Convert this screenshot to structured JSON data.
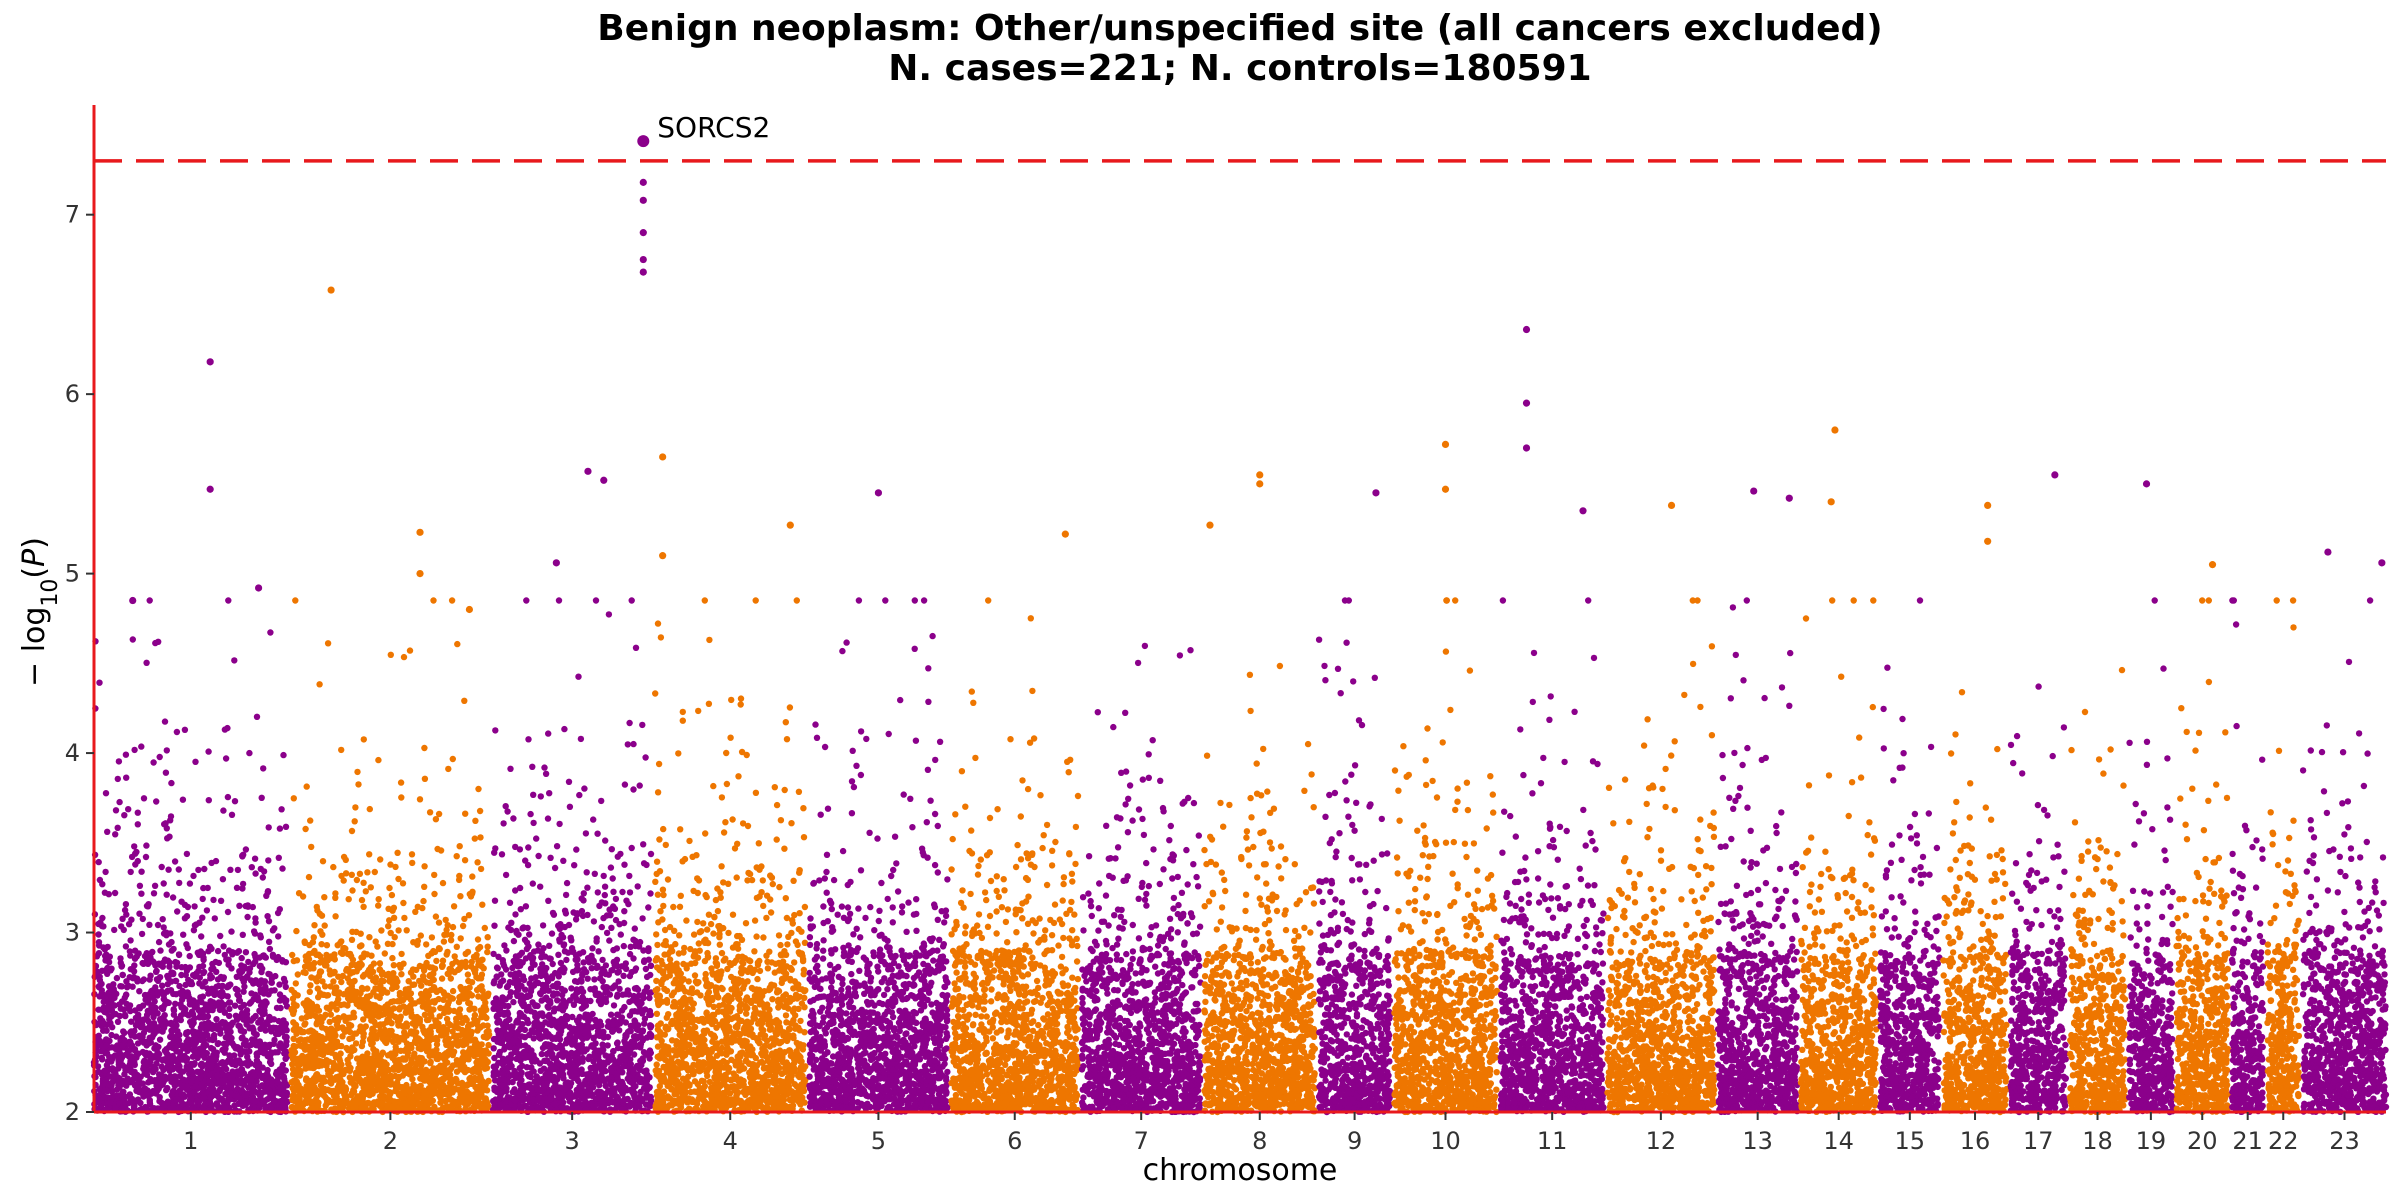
{
  "chart_data": {
    "type": "scatter",
    "title_lines": [
      "Benign neoplasm: Other/unspecified site (all cancers excluded)",
      "N. cases=221; N. controls=180591"
    ],
    "xlabel": "chromosome",
    "ylabel": "−log10(P)",
    "ylabel_parts": {
      "prefix": "− log",
      "sub": "10",
      "open": "(",
      "var": "P",
      "close": ")"
    },
    "ylim": [
      2,
      7.6
    ],
    "yticks": [
      2,
      3,
      4,
      5,
      6,
      7
    ],
    "grid": false,
    "significance_line": {
      "y": 7.3,
      "color": "#e8191c",
      "style": "dashed"
    },
    "colors": {
      "odd": "#8b008b",
      "even": "#ee7600",
      "axis": "#e8191c"
    },
    "chromosomes": [
      "1",
      "2",
      "3",
      "4",
      "5",
      "6",
      "7",
      "8",
      "9",
      "10",
      "11",
      "12",
      "13",
      "14",
      "15",
      "16",
      "17",
      "18",
      "19",
      "20",
      "21",
      "22",
      "23"
    ],
    "chromosome_spans": [
      {
        "start": 0.0,
        "end": 0.98
      },
      {
        "start": 1.0,
        "end": 2.0
      },
      {
        "start": 2.02,
        "end": 2.82
      },
      {
        "start": 2.84,
        "end": 3.6
      },
      {
        "start": 3.62,
        "end": 4.32
      },
      {
        "start": 4.34,
        "end": 4.98
      },
      {
        "start": 5.0,
        "end": 5.6
      },
      {
        "start": 5.62,
        "end": 6.18
      },
      {
        "start": 6.2,
        "end": 6.56
      },
      {
        "start": 6.58,
        "end": 7.1
      },
      {
        "start": 7.12,
        "end": 7.64
      },
      {
        "start": 7.66,
        "end": 8.2
      },
      {
        "start": 8.22,
        "end": 8.62
      },
      {
        "start": 8.64,
        "end": 9.02
      },
      {
        "start": 9.04,
        "end": 9.34
      },
      {
        "start": 9.36,
        "end": 9.68
      },
      {
        "start": 9.7,
        "end": 9.98
      },
      {
        "start": 10.0,
        "end": 10.28
      },
      {
        "start": 10.3,
        "end": 10.52
      },
      {
        "start": 10.54,
        "end": 10.8
      },
      {
        "start": 10.82,
        "end": 10.98
      },
      {
        "start": 11.0,
        "end": 11.16
      },
      {
        "start": 11.18,
        "end": 11.6
      }
    ],
    "top_points": [
      {
        "chr": 1,
        "pos": 0.2,
        "y": 4.85
      },
      {
        "chr": 1,
        "pos": 0.6,
        "y": 6.18
      },
      {
        "chr": 1,
        "pos": 0.6,
        "y": 5.47
      },
      {
        "chr": 1,
        "pos": 0.85,
        "y": 4.92
      },
      {
        "chr": 2,
        "pos": 0.2,
        "y": 6.58
      },
      {
        "chr": 2,
        "pos": 0.65,
        "y": 5.23
      },
      {
        "chr": 2,
        "pos": 0.65,
        "y": 5.0
      },
      {
        "chr": 2,
        "pos": 0.9,
        "y": 4.8
      },
      {
        "chr": 3,
        "pos": 0.4,
        "y": 5.06
      },
      {
        "chr": 3,
        "pos": 0.6,
        "y": 5.57
      },
      {
        "chr": 3,
        "pos": 0.7,
        "y": 5.52
      },
      {
        "chr": 3,
        "pos": 0.95,
        "y": 7.18
      },
      {
        "chr": 3,
        "pos": 0.95,
        "y": 7.08
      },
      {
        "chr": 3,
        "pos": 0.95,
        "y": 6.9
      },
      {
        "chr": 3,
        "pos": 0.95,
        "y": 6.75
      },
      {
        "chr": 3,
        "pos": 0.95,
        "y": 6.68
      },
      {
        "chr": 4,
        "pos": 0.05,
        "y": 5.65
      },
      {
        "chr": 4,
        "pos": 0.05,
        "y": 5.1
      },
      {
        "chr": 4,
        "pos": 0.9,
        "y": 5.27
      },
      {
        "chr": 5,
        "pos": 0.5,
        "y": 5.45
      },
      {
        "chr": 6,
        "pos": 0.9,
        "y": 5.22
      },
      {
        "chr": 8,
        "pos": 0.05,
        "y": 5.27
      },
      {
        "chr": 8,
        "pos": 0.5,
        "y": 5.55
      },
      {
        "chr": 8,
        "pos": 0.5,
        "y": 5.5
      },
      {
        "chr": 9,
        "pos": 0.8,
        "y": 5.45
      },
      {
        "chr": 10,
        "pos": 0.5,
        "y": 5.72
      },
      {
        "chr": 10,
        "pos": 0.5,
        "y": 5.47
      },
      {
        "chr": 11,
        "pos": 0.25,
        "y": 6.36
      },
      {
        "chr": 11,
        "pos": 0.25,
        "y": 5.95
      },
      {
        "chr": 11,
        "pos": 0.25,
        "y": 5.7
      },
      {
        "chr": 11,
        "pos": 0.8,
        "y": 5.35
      },
      {
        "chr": 12,
        "pos": 0.6,
        "y": 5.38
      },
      {
        "chr": 13,
        "pos": 0.45,
        "y": 5.46
      },
      {
        "chr": 13,
        "pos": 0.9,
        "y": 5.42
      },
      {
        "chr": 14,
        "pos": 0.45,
        "y": 5.8
      },
      {
        "chr": 14,
        "pos": 0.4,
        "y": 5.4
      },
      {
        "chr": 16,
        "pos": 0.7,
        "y": 5.38
      },
      {
        "chr": 16,
        "pos": 0.7,
        "y": 5.18
      },
      {
        "chr": 17,
        "pos": 0.8,
        "y": 5.55
      },
      {
        "chr": 19,
        "pos": 0.4,
        "y": 5.5
      },
      {
        "chr": 20,
        "pos": 0.7,
        "y": 5.05
      },
      {
        "chr": 23,
        "pos": 0.3,
        "y": 5.12
      },
      {
        "chr": 23,
        "pos": 0.95,
        "y": 5.06
      }
    ],
    "annotations": [
      {
        "label": "SORCS2",
        "chr": 3,
        "pos": 0.95,
        "y": 7.41
      }
    ]
  }
}
